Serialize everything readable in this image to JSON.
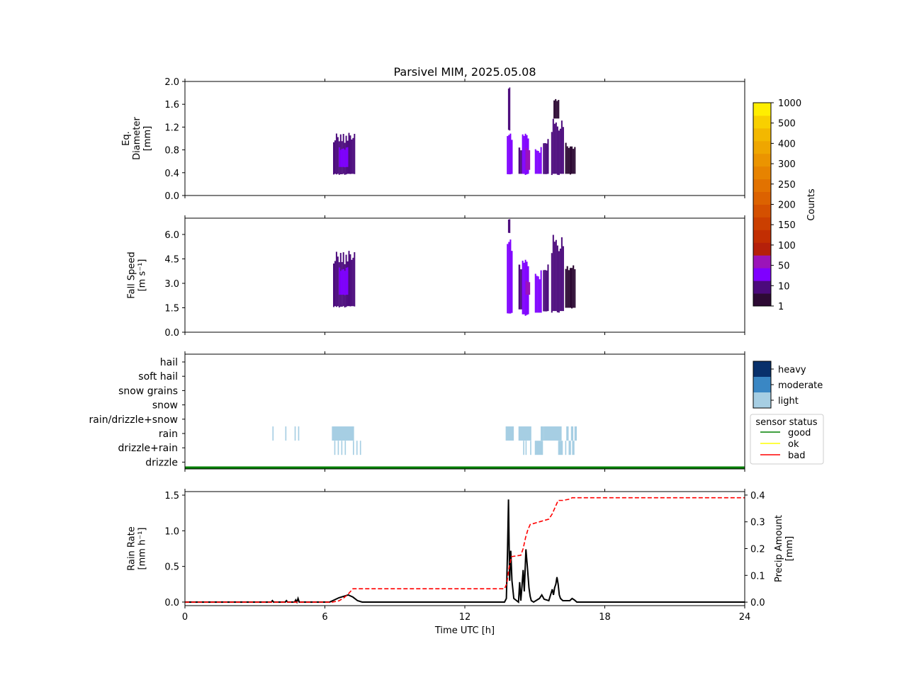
{
  "title": "Parsivel MIM, 2025.05.08",
  "colors": {
    "axis": "#000000",
    "category_light": "#a6cee3",
    "category_moderate": "#3a87c4",
    "category_heavy": "#08306b",
    "status_good": "#008000",
    "status_ok": "#ffff00",
    "status_bad": "#ff0000",
    "rain_rate_line": "#000000",
    "precip_line": "#ff0000",
    "colorbar": [
      "#2d0a34",
      "#4b0a7c",
      "#7f00ff",
      "#9b14b9",
      "#b5200a",
      "#c22e02",
      "#cb3f00",
      "#d45000",
      "#dc6200",
      "#e27200",
      "#e78300",
      "#eb9400",
      "#efa600",
      "#f3b800",
      "#f8d000",
      "#ffee00"
    ]
  },
  "chart_data": [
    {
      "id": "diameter",
      "type": "heatmap",
      "ylabel": [
        "Eq.",
        "Diameter",
        "[mm]"
      ],
      "xlim": [
        0,
        24
      ],
      "ylim": [
        0.0,
        2.0
      ],
      "yticks": [
        "0.0",
        "0.4",
        "0.8",
        "1.2",
        "1.6",
        "2.0"
      ],
      "ytick_values": [
        0.0,
        0.4,
        0.8,
        1.2,
        1.6,
        2.0
      ],
      "blocks": [
        {
          "x": [
            6.35,
            7.3
          ],
          "y": [
            0.38,
            1.1
          ],
          "level": 1
        },
        {
          "x": [
            6.6,
            7.0
          ],
          "y": [
            0.5,
            0.85
          ],
          "level": 2
        },
        {
          "x": [
            13.8,
            14.05
          ],
          "y": [
            0.38,
            1.15
          ],
          "level": 2
        },
        {
          "x": [
            13.85,
            13.95
          ],
          "y": [
            1.15,
            1.95
          ],
          "level": 1
        },
        {
          "x": [
            14.3,
            14.45
          ],
          "y": [
            0.38,
            0.9
          ],
          "level": 1
        },
        {
          "x": [
            14.45,
            14.75
          ],
          "y": [
            0.38,
            1.2
          ],
          "level": 2
        },
        {
          "x": [
            14.6,
            14.8
          ],
          "y": [
            0.45,
            0.85
          ],
          "level": 3
        },
        {
          "x": [
            15.0,
            15.3
          ],
          "y": [
            0.38,
            0.85
          ],
          "level": 2
        },
        {
          "x": [
            15.35,
            15.6
          ],
          "y": [
            0.38,
            1.0
          ],
          "level": 1
        },
        {
          "x": [
            15.7,
            16.25
          ],
          "y": [
            0.38,
            1.35
          ],
          "level": 1
        },
        {
          "x": [
            15.8,
            16.05
          ],
          "y": [
            1.35,
            1.75
          ],
          "level": 0
        },
        {
          "x": [
            16.3,
            16.75
          ],
          "y": [
            0.38,
            0.95
          ],
          "level": 0
        }
      ],
      "no_colorbar_bins": true
    },
    {
      "id": "fallspeed",
      "type": "heatmap",
      "ylabel": [
        "Fall Speed",
        "[m s⁻¹]"
      ],
      "xlim": [
        0,
        24
      ],
      "ylim": [
        0.0,
        7.0
      ],
      "yticks": [
        "0.0",
        "1.5",
        "3.0",
        "4.5",
        "6.0"
      ],
      "ytick_values": [
        0.0,
        1.5,
        3.0,
        4.5,
        6.0
      ],
      "blocks": [
        {
          "x": [
            6.35,
            7.3
          ],
          "y": [
            1.6,
            5.0
          ],
          "level": 1
        },
        {
          "x": [
            6.6,
            7.0
          ],
          "y": [
            2.3,
            4.0
          ],
          "level": 2
        },
        {
          "x": [
            13.8,
            14.05
          ],
          "y": [
            1.2,
            6.1
          ],
          "level": 2
        },
        {
          "x": [
            13.85,
            13.95
          ],
          "y": [
            6.1,
            7.0
          ],
          "level": 1
        },
        {
          "x": [
            14.3,
            14.45
          ],
          "y": [
            1.4,
            4.5
          ],
          "level": 1
        },
        {
          "x": [
            14.45,
            14.75
          ],
          "y": [
            1.1,
            5.0
          ],
          "level": 2
        },
        {
          "x": [
            14.6,
            14.8
          ],
          "y": [
            2.3,
            3.2
          ],
          "level": 3
        },
        {
          "x": [
            15.0,
            15.3
          ],
          "y": [
            1.2,
            3.8
          ],
          "level": 2
        },
        {
          "x": [
            15.35,
            15.6
          ],
          "y": [
            1.3,
            4.2
          ],
          "level": 1
        },
        {
          "x": [
            15.7,
            16.25
          ],
          "y": [
            1.3,
            6.0
          ],
          "level": 1
        },
        {
          "x": [
            16.3,
            16.75
          ],
          "y": [
            1.5,
            4.5
          ],
          "level": 0
        }
      ]
    },
    {
      "id": "categories",
      "type": "heatmap",
      "xlim": [
        0,
        24
      ],
      "categories": [
        "hail",
        "soft hail",
        "snow grains",
        "snow",
        "rain/drizzle+snow",
        "rain",
        "drizzle+rain",
        "drizzle"
      ],
      "intensity_legend": [
        "heavy",
        "moderate",
        "light"
      ],
      "status_legend_title": "sensor status",
      "status_legend": [
        "good",
        "ok",
        "bad"
      ],
      "status_timeline": [
        {
          "x": [
            0,
            24
          ],
          "status": "good"
        }
      ],
      "marks": [
        {
          "category": "rain",
          "x": [
            3.75,
            3.8
          ],
          "intensity": "light"
        },
        {
          "category": "rain",
          "x": [
            4.3,
            4.35
          ],
          "intensity": "light"
        },
        {
          "category": "rain",
          "x": [
            4.7,
            4.75
          ],
          "intensity": "light"
        },
        {
          "category": "rain",
          "x": [
            4.85,
            4.9
          ],
          "intensity": "light"
        },
        {
          "category": "rain",
          "x": [
            6.3,
            7.25
          ],
          "intensity": "light"
        },
        {
          "category": "rain",
          "x": [
            13.75,
            14.1
          ],
          "intensity": "light"
        },
        {
          "category": "rain",
          "x": [
            14.3,
            14.85
          ],
          "intensity": "light"
        },
        {
          "category": "rain",
          "x": [
            15.25,
            15.4
          ],
          "intensity": "light"
        },
        {
          "category": "rain",
          "x": [
            15.4,
            16.15
          ],
          "intensity": "light"
        },
        {
          "category": "rain",
          "x": [
            16.35,
            16.45
          ],
          "intensity": "light"
        },
        {
          "category": "rain",
          "x": [
            16.55,
            16.65
          ],
          "intensity": "light"
        },
        {
          "category": "rain",
          "x": [
            16.7,
            16.8
          ],
          "intensity": "light"
        },
        {
          "category": "drizzle+rain",
          "x": [
            6.4,
            6.45
          ],
          "intensity": "light"
        },
        {
          "category": "drizzle+rain",
          "x": [
            6.55,
            6.6
          ],
          "intensity": "light"
        },
        {
          "category": "drizzle+rain",
          "x": [
            6.7,
            6.75
          ],
          "intensity": "light"
        },
        {
          "category": "drizzle+rain",
          "x": [
            6.85,
            6.9
          ],
          "intensity": "light"
        },
        {
          "category": "drizzle+rain",
          "x": [
            7.2,
            7.25
          ],
          "intensity": "light"
        },
        {
          "category": "drizzle+rain",
          "x": [
            7.35,
            7.4
          ],
          "intensity": "light"
        },
        {
          "category": "drizzle+rain",
          "x": [
            7.5,
            7.55
          ],
          "intensity": "light"
        },
        {
          "category": "drizzle+rain",
          "x": [
            14.5,
            14.55
          ],
          "intensity": "light"
        },
        {
          "category": "drizzle+rain",
          "x": [
            14.6,
            14.65
          ],
          "intensity": "light"
        },
        {
          "category": "drizzle+rain",
          "x": [
            14.8,
            14.85
          ],
          "intensity": "light"
        },
        {
          "category": "drizzle+rain",
          "x": [
            15.0,
            15.35
          ],
          "intensity": "light"
        },
        {
          "category": "drizzle+rain",
          "x": [
            16.0,
            16.2
          ],
          "intensity": "light"
        },
        {
          "category": "drizzle+rain",
          "x": [
            16.3,
            16.35
          ],
          "intensity": "light"
        },
        {
          "category": "drizzle+rain",
          "x": [
            16.45,
            16.55
          ],
          "intensity": "light"
        },
        {
          "category": "drizzle+rain",
          "x": [
            16.6,
            16.7
          ],
          "intensity": "light"
        }
      ]
    },
    {
      "id": "rainrate",
      "type": "line",
      "xlabel": "Time UTC [h]",
      "xlim": [
        0,
        24
      ],
      "xticks": [
        "0",
        "6",
        "12",
        "18",
        "24"
      ],
      "xtick_values": [
        0,
        6,
        12,
        18,
        24
      ],
      "ylabel": [
        "Rain Rate",
        "[mm h⁻¹]"
      ],
      "ylim": [
        -0.05,
        1.55
      ],
      "yticks": [
        "0.0",
        "0.5",
        "1.0",
        "1.5"
      ],
      "ytick_values": [
        0.0,
        0.5,
        1.0,
        1.5
      ],
      "y2label": [
        "Precip Amount",
        "[mm]"
      ],
      "y2lim": [
        -0.013,
        0.413
      ],
      "y2ticks": [
        "0.0",
        "0.1",
        "0.2",
        "0.3",
        "0.4"
      ],
      "y2tick_values": [
        0.0,
        0.1,
        0.2,
        0.3,
        0.4
      ],
      "series": [
        {
          "axis": "left",
          "style": "solid",
          "x": [
            0,
            3.7,
            3.75,
            3.8,
            4.3,
            4.35,
            4.4,
            4.7,
            4.75,
            4.8,
            4.85,
            4.9,
            4.95,
            6.2,
            6.4,
            6.6,
            6.8,
            7.0,
            7.2,
            7.4,
            7.6,
            13.7,
            13.78,
            13.83,
            13.87,
            13.92,
            13.97,
            14.02,
            14.1,
            14.3,
            14.35,
            14.4,
            14.45,
            14.5,
            14.55,
            14.62,
            14.68,
            14.75,
            14.8,
            14.85,
            14.95,
            15.2,
            15.3,
            15.4,
            15.6,
            15.75,
            15.8,
            15.85,
            15.9,
            15.95,
            16.0,
            16.05,
            16.1,
            16.2,
            16.5,
            16.6,
            16.7,
            16.8,
            24
          ],
          "y": [
            0,
            0,
            0.02,
            0,
            0,
            0.02,
            0,
            0,
            0.03,
            0,
            0.05,
            0,
            0,
            0,
            0.03,
            0.06,
            0.08,
            0.1,
            0.07,
            0.02,
            0,
            0,
            0.05,
            0.7,
            1.44,
            0.3,
            0.72,
            0.3,
            0.05,
            0,
            0.28,
            0.02,
            0.22,
            0.45,
            0.15,
            0.74,
            0.5,
            0.2,
            0.08,
            0.02,
            0,
            0.05,
            0.1,
            0.04,
            0.02,
            0.18,
            0.1,
            0.2,
            0.25,
            0.35,
            0.25,
            0.1,
            0.05,
            0.02,
            0.02,
            0.05,
            0.03,
            0,
            0
          ]
        },
        {
          "axis": "right",
          "style": "dashed",
          "x": [
            0,
            6.3,
            6.6,
            6.8,
            7.0,
            7.2,
            13.7,
            13.8,
            13.9,
            14.0,
            14.4,
            14.5,
            14.6,
            14.7,
            14.8,
            15.2,
            15.6,
            15.75,
            15.9,
            16.0,
            16.2,
            16.5,
            16.6,
            24
          ],
          "y": [
            0,
            0,
            0.005,
            0.015,
            0.03,
            0.05,
            0.05,
            0.07,
            0.13,
            0.17,
            0.175,
            0.2,
            0.24,
            0.27,
            0.29,
            0.3,
            0.31,
            0.33,
            0.36,
            0.38,
            0.38,
            0.385,
            0.39,
            0.39
          ]
        }
      ]
    }
  ],
  "colorbar": {
    "label": "Counts",
    "ticks": [
      "1",
      "10",
      "50",
      "100",
      "150",
      "200",
      "250",
      "300",
      "400",
      "500",
      "1000"
    ],
    "bins": 16
  }
}
